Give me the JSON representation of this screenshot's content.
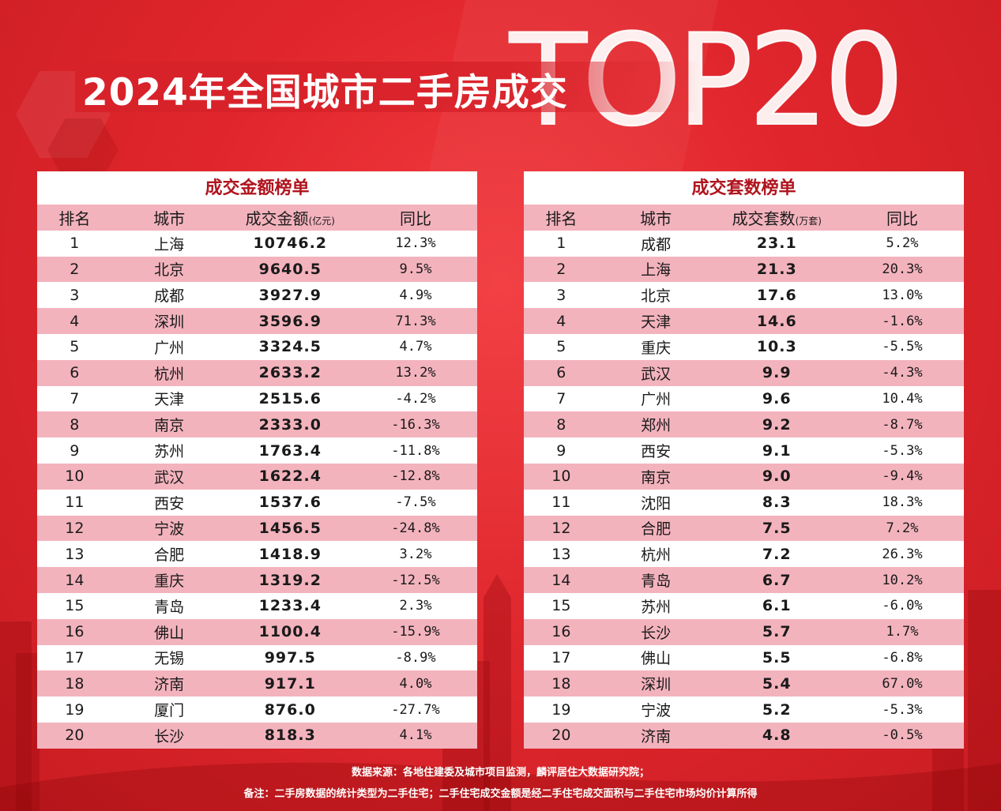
{
  "header": {
    "title": "2024年全国城市二手房成交",
    "top_label": "TOP20"
  },
  "left_table": {
    "heading": "成交金额榜单",
    "columns": {
      "rank": "排名",
      "city": "城市",
      "value": "成交金额",
      "value_unit": "(亿元)",
      "yoy": "同比"
    },
    "rows": [
      {
        "rank": "1",
        "city": "上海",
        "value": "10746.2",
        "yoy": "12.3%"
      },
      {
        "rank": "2",
        "city": "北京",
        "value": "9640.5",
        "yoy": "9.5%"
      },
      {
        "rank": "3",
        "city": "成都",
        "value": "3927.9",
        "yoy": "4.9%"
      },
      {
        "rank": "4",
        "city": "深圳",
        "value": "3596.9",
        "yoy": "71.3%"
      },
      {
        "rank": "5",
        "city": "广州",
        "value": "3324.5",
        "yoy": "4.7%"
      },
      {
        "rank": "6",
        "city": "杭州",
        "value": "2633.2",
        "yoy": "13.2%"
      },
      {
        "rank": "7",
        "city": "天津",
        "value": "2515.6",
        "yoy": "-4.2%"
      },
      {
        "rank": "8",
        "city": "南京",
        "value": "2333.0",
        "yoy": "-16.3%"
      },
      {
        "rank": "9",
        "city": "苏州",
        "value": "1763.4",
        "yoy": "-11.8%"
      },
      {
        "rank": "10",
        "city": "武汉",
        "value": "1622.4",
        "yoy": "-12.8%"
      },
      {
        "rank": "11",
        "city": "西安",
        "value": "1537.6",
        "yoy": "-7.5%"
      },
      {
        "rank": "12",
        "city": "宁波",
        "value": "1456.5",
        "yoy": "-24.8%"
      },
      {
        "rank": "13",
        "city": "合肥",
        "value": "1418.9",
        "yoy": "3.2%"
      },
      {
        "rank": "14",
        "city": "重庆",
        "value": "1319.2",
        "yoy": "-12.5%"
      },
      {
        "rank": "15",
        "city": "青岛",
        "value": "1233.4",
        "yoy": "2.3%"
      },
      {
        "rank": "16",
        "city": "佛山",
        "value": "1100.4",
        "yoy": "-15.9%"
      },
      {
        "rank": "17",
        "city": "无锡",
        "value": "997.5",
        "yoy": "-8.9%"
      },
      {
        "rank": "18",
        "city": "济南",
        "value": "917.1",
        "yoy": "4.0%"
      },
      {
        "rank": "19",
        "city": "厦门",
        "value": "876.0",
        "yoy": "-27.7%"
      },
      {
        "rank": "20",
        "city": "长沙",
        "value": "818.3",
        "yoy": "4.1%"
      }
    ]
  },
  "right_table": {
    "heading": "成交套数榜单",
    "columns": {
      "rank": "排名",
      "city": "城市",
      "value": "成交套数",
      "value_unit": "(万套)",
      "yoy": "同比"
    },
    "rows": [
      {
        "rank": "1",
        "city": "成都",
        "value": "23.1",
        "yoy": "5.2%"
      },
      {
        "rank": "2",
        "city": "上海",
        "value": "21.3",
        "yoy": "20.3%"
      },
      {
        "rank": "3",
        "city": "北京",
        "value": "17.6",
        "yoy": "13.0%"
      },
      {
        "rank": "4",
        "city": "天津",
        "value": "14.6",
        "yoy": "-1.6%"
      },
      {
        "rank": "5",
        "city": "重庆",
        "value": "10.3",
        "yoy": "-5.5%"
      },
      {
        "rank": "6",
        "city": "武汉",
        "value": "9.9",
        "yoy": "-4.3%"
      },
      {
        "rank": "7",
        "city": "广州",
        "value": "9.6",
        "yoy": "10.4%"
      },
      {
        "rank": "8",
        "city": "郑州",
        "value": "9.2",
        "yoy": "-8.7%"
      },
      {
        "rank": "9",
        "city": "西安",
        "value": "9.1",
        "yoy": "-5.3%"
      },
      {
        "rank": "10",
        "city": "南京",
        "value": "9.0",
        "yoy": "-9.4%"
      },
      {
        "rank": "11",
        "city": "沈阳",
        "value": "8.3",
        "yoy": "18.3%"
      },
      {
        "rank": "12",
        "city": "合肥",
        "value": "7.5",
        "yoy": "7.2%"
      },
      {
        "rank": "13",
        "city": "杭州",
        "value": "7.2",
        "yoy": "26.3%"
      },
      {
        "rank": "14",
        "city": "青岛",
        "value": "6.7",
        "yoy": "10.2%"
      },
      {
        "rank": "15",
        "city": "苏州",
        "value": "6.1",
        "yoy": "-6.0%"
      },
      {
        "rank": "16",
        "city": "长沙",
        "value": "5.7",
        "yoy": "1.7%"
      },
      {
        "rank": "17",
        "city": "佛山",
        "value": "5.5",
        "yoy": "-6.8%"
      },
      {
        "rank": "18",
        "city": "深圳",
        "value": "5.4",
        "yoy": "67.0%"
      },
      {
        "rank": "19",
        "city": "宁波",
        "value": "5.2",
        "yoy": "-5.3%"
      },
      {
        "rank": "20",
        "city": "济南",
        "value": "4.8",
        "yoy": "-0.5%"
      }
    ]
  },
  "footer": {
    "source": "数据来源：各地住建委及城市项目监测，麟评居住大数据研究院；",
    "note": "备注：二手房数据的统计类型为二手住宅；二手住宅成交金额是经二手住宅成交面积与二手住宅市场均价计算所得"
  },
  "colors": {
    "background": "#e0262c",
    "row_highlight": "#f3b3bd",
    "heading": "#b0141e"
  }
}
